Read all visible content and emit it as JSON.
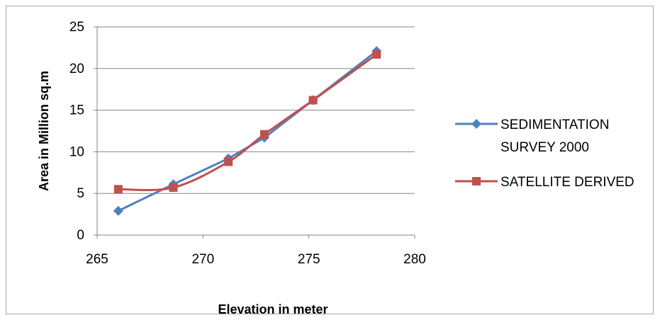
{
  "chart_data": {
    "type": "line",
    "title": "",
    "xlabel": "Elevation in meter",
    "ylabel": "Area in Million sq.m",
    "xlim": [
      265,
      280
    ],
    "ylim": [
      0,
      25
    ],
    "x_ticks": [
      265,
      270,
      275,
      280
    ],
    "y_ticks": [
      0,
      5,
      10,
      15,
      20,
      25
    ],
    "grid": "horizontal",
    "legend_position": "right",
    "series": [
      {
        "name": "SEDIMENTATION SURVEY 2000",
        "name_lines": [
          "SEDIMENTATION",
          "SURVEY 2000"
        ],
        "color": "#4f81bd",
        "marker": "diamond",
        "smooth": false,
        "points": [
          [
            266.0,
            2.9
          ],
          [
            268.6,
            6.1
          ],
          [
            271.2,
            9.2
          ],
          [
            272.9,
            11.7
          ],
          [
            275.2,
            16.2
          ],
          [
            278.2,
            22.1
          ]
        ]
      },
      {
        "name": "SATELLITE DERIVED",
        "name_lines": [
          "SATELLITE DERIVED"
        ],
        "color": "#c0504d",
        "marker": "square",
        "smooth": true,
        "points": [
          [
            266.0,
            5.5
          ],
          [
            268.6,
            5.7
          ],
          [
            271.2,
            8.8
          ],
          [
            272.9,
            12.1
          ],
          [
            275.2,
            16.2
          ],
          [
            278.2,
            21.7
          ]
        ]
      }
    ]
  }
}
